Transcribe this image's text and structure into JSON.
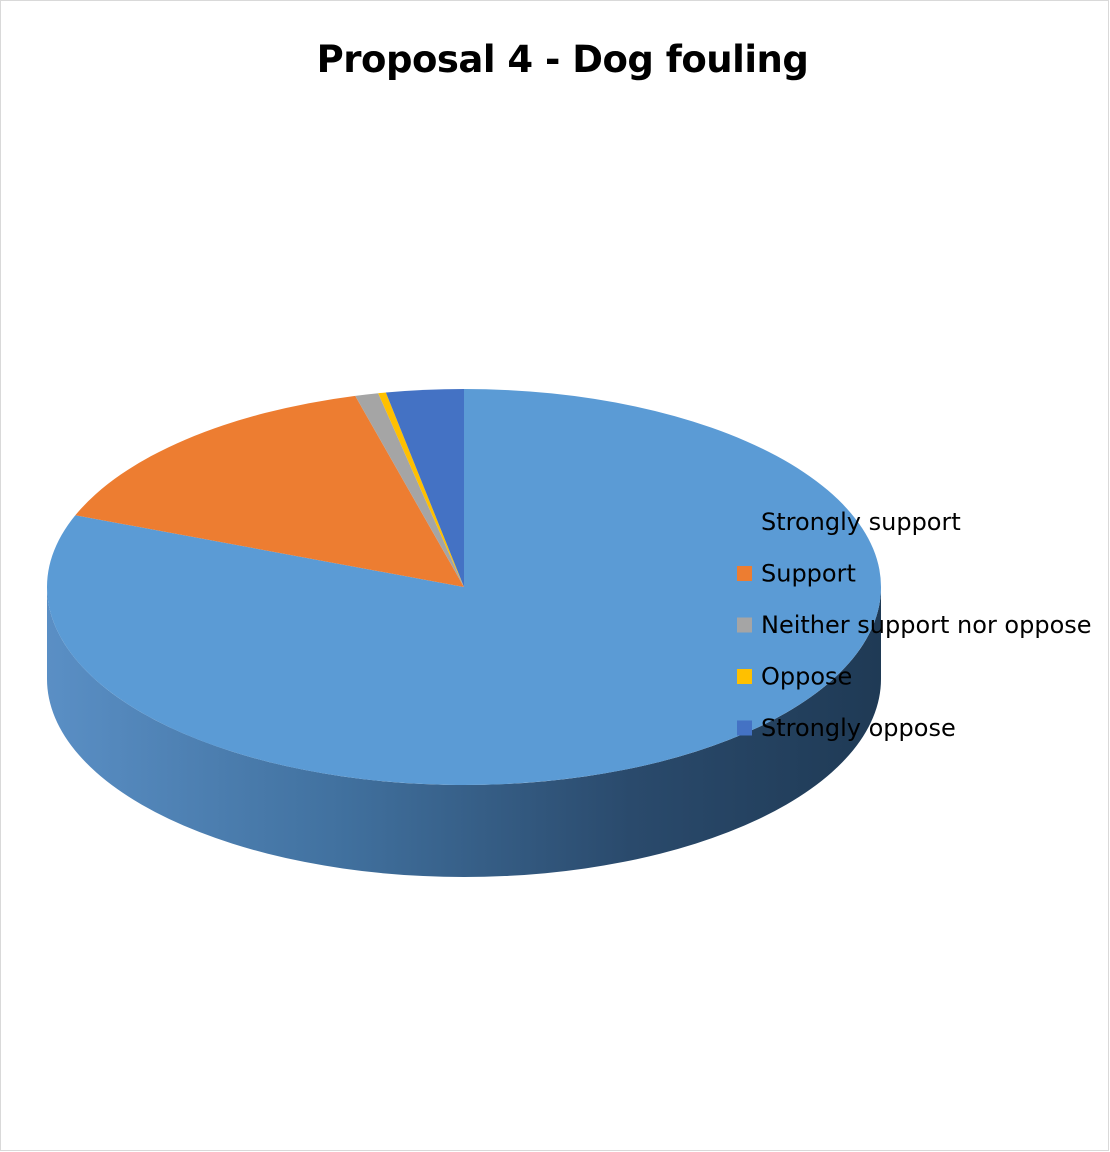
{
  "chart_data": {
    "type": "pie",
    "style": "3d",
    "title": "Proposal 4 - Dog fouling",
    "categories": [
      "Strongly support",
      "Support",
      "Neither support nor oppose",
      "Oppose",
      "Strongly oppose"
    ],
    "values": [
      80.9,
      14.9,
      0.9,
      0.3,
      3.0
    ],
    "colors": [
      "#5b9bd5",
      "#ed7d31",
      "#a5a5a5",
      "#ffc000",
      "#4472c4"
    ],
    "legend": "right"
  }
}
